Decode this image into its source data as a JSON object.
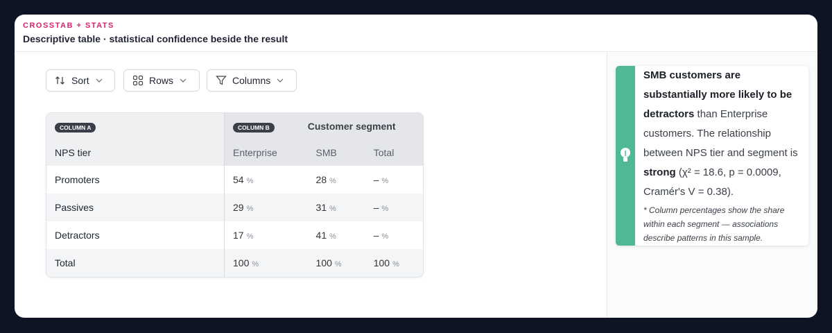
{
  "header": {
    "kicker": "CROSSTAB + STATS",
    "title": "Descriptive table · statistical confidence beside the result"
  },
  "controls": [
    "Sort",
    "Rows",
    "Columns"
  ],
  "table": {
    "column_a_badge": "COLUMN A",
    "column_b_badge": "COLUMN B",
    "group_header": "Customer segment",
    "row_header": "NPS tier",
    "columns": [
      "Enterprise",
      "SMB",
      "Total"
    ],
    "rows": [
      {
        "label": "Promoters",
        "cells": [
          {
            "value": 54,
            "unit": "%"
          },
          {
            "value": 28,
            "unit": "%"
          },
          {
            "value": "–",
            "unit": "%"
          }
        ]
      },
      {
        "label": "Passives",
        "cells": [
          {
            "value": 29,
            "unit": "%"
          },
          {
            "value": 31,
            "unit": "%"
          },
          {
            "value": "–",
            "unit": "%"
          }
        ]
      },
      {
        "label": "Detractors",
        "cells": [
          {
            "value": 17,
            "unit": "%"
          },
          {
            "value": 41,
            "unit": "%"
          },
          {
            "value": "–",
            "unit": "%"
          }
        ]
      },
      {
        "label": "Total",
        "cells": [
          {
            "value": 100,
            "unit": "%"
          },
          {
            "value": 100,
            "unit": "%"
          },
          {
            "value": 100,
            "unit": "%"
          }
        ]
      }
    ]
  },
  "insight": {
    "segments": [
      {
        "text": "SMB customers are substantially more likely to be detractors",
        "bold": true
      },
      {
        "text": " than Enterprise customers. The relationship between NPS tier and segment is ",
        "bold": false
      },
      {
        "text": "strong",
        "bold": true
      },
      {
        "text": " (χ² = 18.6, p = 0.0009, Cramér's V = 0.38).",
        "bold": false
      }
    ],
    "footnote": "* Column percentages show the share within each segment — associations describe patterns in this sample."
  }
}
